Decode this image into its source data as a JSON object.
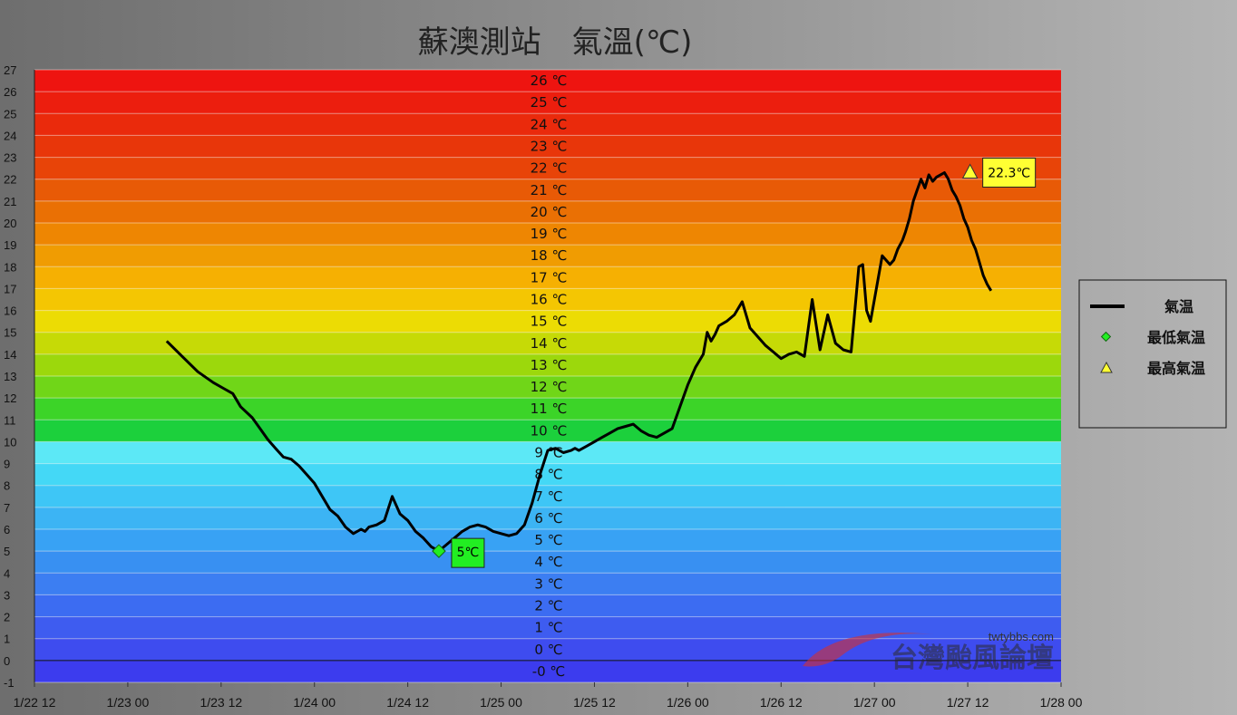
{
  "chart_data": {
    "type": "line",
    "title": "蘇澳測站　氣溫(℃)",
    "xlabel": "",
    "ylabel": "",
    "x_unit": "hours since 1/22 12",
    "xlim": [
      0,
      132
    ],
    "ylim": [
      -1,
      27
    ],
    "y_ticks": [
      -1,
      0,
      1,
      2,
      3,
      4,
      5,
      6,
      7,
      8,
      9,
      10,
      11,
      12,
      13,
      14,
      15,
      16,
      17,
      18,
      19,
      20,
      21,
      22,
      23,
      24,
      25,
      26,
      27
    ],
    "x_tick_values": [
      0,
      12,
      24,
      36,
      48,
      60,
      72,
      84,
      96,
      108,
      120,
      132
    ],
    "x_tick_labels": [
      "1/22 12",
      "1/23 00",
      "1/23 12",
      "1/24 00",
      "1/24 12",
      "1/25 00",
      "1/25 12",
      "1/26 00",
      "1/26 12",
      "1/27 00",
      "1/27 12",
      "1/28 00"
    ],
    "band_labels": [
      {
        "value": -0.5,
        "label": "-0 ℃"
      },
      {
        "value": 0.5,
        "label": "0 ℃"
      },
      {
        "value": 1.5,
        "label": "1 ℃"
      },
      {
        "value": 2.5,
        "label": "2 ℃"
      },
      {
        "value": 3.5,
        "label": "3 ℃"
      },
      {
        "value": 4.5,
        "label": "4 ℃"
      },
      {
        "value": 5.5,
        "label": "5 ℃"
      },
      {
        "value": 6.5,
        "label": "6 ℃"
      },
      {
        "value": 7.5,
        "label": "7 ℃"
      },
      {
        "value": 8.5,
        "label": "8 ℃"
      },
      {
        "value": 9.5,
        "label": "9 ℃"
      },
      {
        "value": 10.5,
        "label": "10 ℃"
      },
      {
        "value": 11.5,
        "label": "11 ℃"
      },
      {
        "value": 12.5,
        "label": "12 ℃"
      },
      {
        "value": 13.5,
        "label": "13 ℃"
      },
      {
        "value": 14.5,
        "label": "14 ℃"
      },
      {
        "value": 15.5,
        "label": "15 ℃"
      },
      {
        "value": 16.5,
        "label": "16 ℃"
      },
      {
        "value": 17.5,
        "label": "17 ℃"
      },
      {
        "value": 18.5,
        "label": "18 ℃"
      },
      {
        "value": 19.5,
        "label": "19 ℃"
      },
      {
        "value": 20.5,
        "label": "20 ℃"
      },
      {
        "value": 21.5,
        "label": "21 ℃"
      },
      {
        "value": 22.5,
        "label": "22 ℃"
      },
      {
        "value": 23.5,
        "label": "23 ℃"
      },
      {
        "value": 24.5,
        "label": "24 ℃"
      },
      {
        "value": 25.5,
        "label": "25 ℃"
      },
      {
        "value": 26.5,
        "label": "26 ℃"
      }
    ],
    "band_colors": {
      "-1": "#3c3cee",
      "0": "#3e4cef",
      "1": "#3e5cf0",
      "2": "#3c6cf2",
      "3": "#3c7ef2",
      "4": "#3890f2",
      "5": "#38a2f4",
      "6": "#3cb4f4",
      "7": "#3ec6f6",
      "8": "#44d8f6",
      "9": "#5ce8f6",
      "10": "#1cd03c",
      "11": "#3cd428",
      "12": "#70d618",
      "13": "#9cd80c",
      "14": "#c6da06",
      "15": "#ecdc04",
      "16": "#f4c602",
      "17": "#f6b002",
      "18": "#f09c02",
      "19": "#ee8602",
      "20": "#ea7004",
      "21": "#e85a06",
      "22": "#e84408",
      "23": "#e8360a",
      "24": "#ea2a0c",
      "25": "#ec1e0e",
      "26": "#ee1410"
    },
    "series": [
      {
        "name": "氣温",
        "color": "#000000",
        "x": [
          17,
          19,
          21,
          23,
          24.5,
          25.5,
          26.5,
          28,
          29,
          30,
          31,
          32,
          33,
          34,
          35,
          36,
          37,
          38,
          39,
          40,
          41,
          42,
          42.5,
          43,
          44,
          45,
          46,
          47,
          48,
          49,
          50,
          51,
          52,
          53,
          54,
          55,
          56,
          57,
          58,
          59,
          60,
          61,
          62,
          63,
          64,
          65,
          66,
          67,
          68,
          69,
          69.5,
          70,
          71,
          72,
          73,
          74,
          75,
          76,
          77,
          78,
          79,
          80,
          81,
          82,
          83,
          84,
          85,
          86,
          86.5,
          87,
          87.5,
          88,
          89,
          90,
          91,
          92,
          93,
          94,
          95,
          96,
          97,
          98,
          99,
          100,
          101,
          102,
          103,
          104,
          105,
          106,
          106.5,
          107,
          107.5,
          108,
          109,
          110,
          110.5,
          111,
          111.3,
          111.6,
          112,
          112.5,
          113,
          113.5,
          114,
          114.5,
          115,
          115.5,
          116,
          116.5,
          117,
          117.5,
          118,
          118.5,
          119,
          119.5,
          120,
          120.5,
          121,
          121.5,
          122,
          122.5,
          123
        ],
        "values": [
          14.6,
          13.9,
          13.2,
          12.7,
          12.4,
          12.2,
          11.6,
          11.1,
          10.6,
          10.1,
          9.7,
          9.3,
          9.2,
          8.9,
          8.5,
          8.1,
          7.5,
          6.9,
          6.6,
          6.1,
          5.8,
          6.0,
          5.9,
          6.1,
          6.2,
          6.4,
          7.5,
          6.7,
          6.4,
          5.9,
          5.6,
          5.2,
          5.0,
          5.3,
          5.6,
          5.9,
          6.1,
          6.2,
          6.1,
          5.9,
          5.8,
          5.7,
          5.8,
          6.2,
          7.2,
          8.5,
          9.6,
          9.7,
          9.5,
          9.6,
          9.7,
          9.6,
          9.8,
          10.0,
          10.2,
          10.4,
          10.6,
          10.7,
          10.8,
          10.5,
          10.3,
          10.2,
          10.4,
          10.6,
          11.6,
          12.6,
          13.4,
          14.0,
          15.0,
          14.6,
          14.9,
          15.3,
          15.5,
          15.8,
          16.4,
          15.2,
          14.8,
          14.4,
          14.1,
          13.8,
          14.0,
          14.1,
          13.9,
          16.5,
          14.2,
          15.8,
          14.5,
          14.2,
          14.1,
          18.0,
          18.1,
          16.0,
          15.5,
          16.5,
          18.5,
          18.1,
          18.3,
          18.8,
          19.0,
          19.2,
          19.6,
          20.2,
          21.0,
          21.5,
          22.0,
          21.6,
          22.2,
          21.9,
          22.1,
          22.2,
          22.3,
          22.0,
          21.5,
          21.2,
          20.8,
          20.2,
          19.8,
          19.2,
          18.8,
          18.2,
          17.6,
          17.2,
          16.9
        ]
      }
    ],
    "min_point": {
      "x": 52,
      "y": 5,
      "label": "5℃",
      "marker": "diamond",
      "color": "#22ee22"
    },
    "max_point": {
      "x": 120.3,
      "y": 22.3,
      "label": "22.3℃",
      "marker": "triangle",
      "color": "#ffff33"
    },
    "legend": {
      "position": "right",
      "entries": [
        {
          "label": "氣温",
          "marker": "line",
          "color": "#000000"
        },
        {
          "label": "最低氣温",
          "marker": "diamond",
          "color": "#22ee22"
        },
        {
          "label": "最高氣温",
          "marker": "triangle",
          "color": "#ffff33"
        }
      ]
    },
    "watermark": {
      "url": "twtybbs.com",
      "name": "台灣颱風論壇"
    }
  }
}
